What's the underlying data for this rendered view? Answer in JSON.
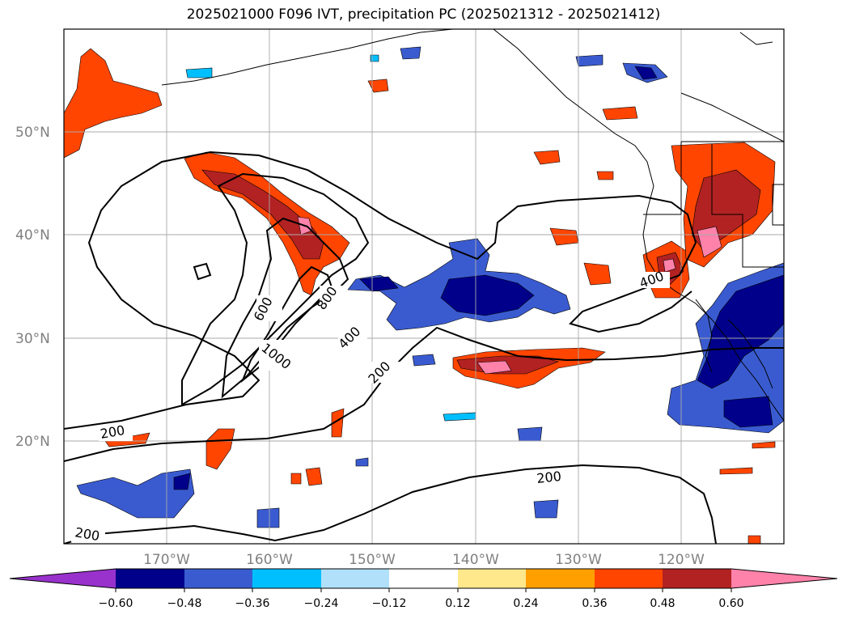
{
  "title": "2025021000 F096 IVT, precipitation PC (2025021312 - 2025021412)",
  "map": {
    "lon_range": [
      -180,
      -110
    ],
    "lat_range": [
      10,
      60
    ],
    "grid": true,
    "lat_ticks": [
      {
        "value": 50,
        "label": "50°N"
      },
      {
        "value": 40,
        "label": "40°N"
      },
      {
        "value": 30,
        "label": "30°N"
      },
      {
        "value": 20,
        "label": "20°N"
      }
    ],
    "lon_ticks": [
      {
        "value": -170,
        "label": "170°W"
      },
      {
        "value": -160,
        "label": "160°W"
      },
      {
        "value": -150,
        "label": "150°W"
      },
      {
        "value": -140,
        "label": "140°W"
      },
      {
        "value": -130,
        "label": "130°W"
      },
      {
        "value": -120,
        "label": "120°W"
      }
    ],
    "ivt_contour_labels": [
      "200",
      "200",
      "200",
      "200",
      "400",
      "400",
      "600",
      "800",
      "1000"
    ]
  },
  "colorbar": {
    "bins": [
      {
        "color": "#9932cc"
      },
      {
        "color": "#00008b"
      },
      {
        "color": "#3a5bd0"
      },
      {
        "color": "#00bfff"
      },
      {
        "color": "#b0e0fa"
      },
      {
        "color": "#ffffff"
      },
      {
        "color": "#ffe88c"
      },
      {
        "color": "#ff9f00"
      },
      {
        "color": "#ff4500"
      },
      {
        "color": "#b22222"
      },
      {
        "color": "#ff82ab"
      }
    ],
    "tick_labels": [
      "−0.60",
      "−0.48",
      "−0.36",
      "−0.24",
      "−0.12",
      "0.12",
      "0.24",
      "0.36",
      "0.48",
      "0.60"
    ]
  }
}
